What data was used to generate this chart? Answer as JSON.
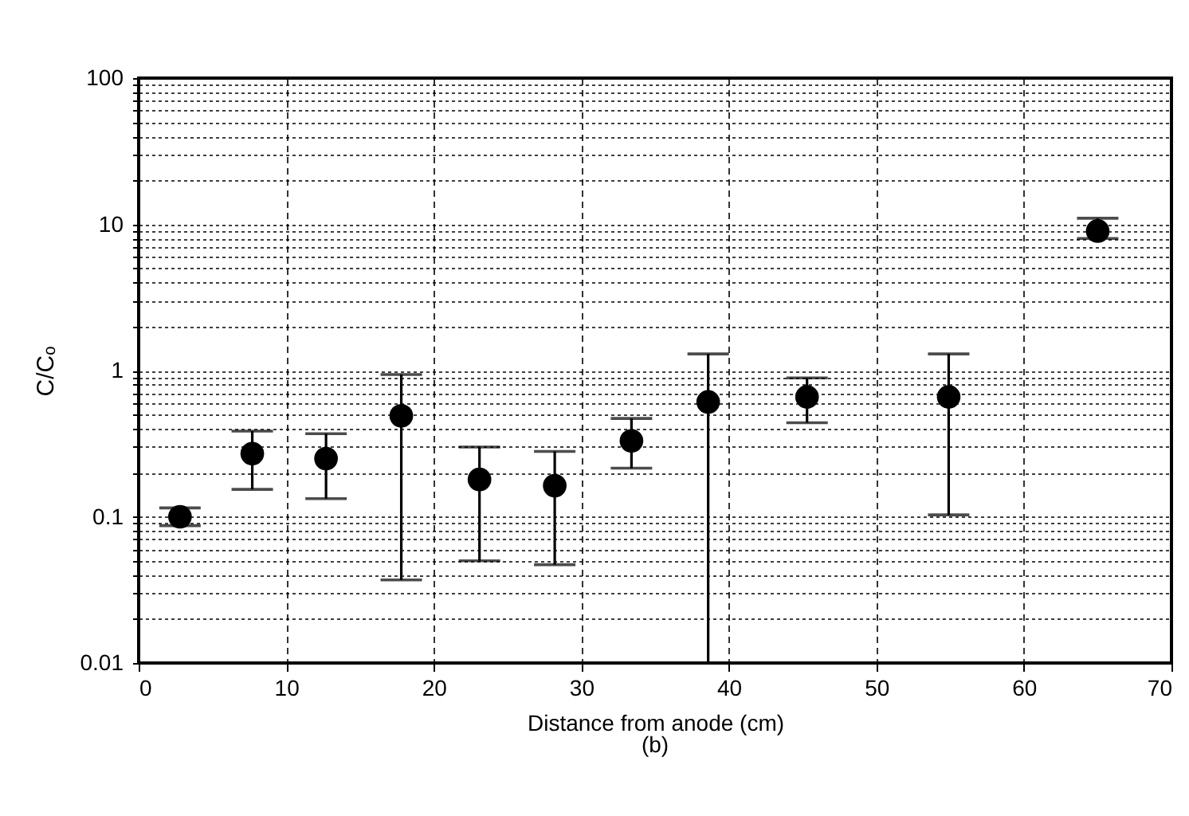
{
  "chart_data": {
    "type": "scatter",
    "xlabel": "Distance from anode (cm)",
    "ylabel": "C/Cₒ",
    "annotations": [
      "(b)"
    ],
    "x": [
      2.8,
      7.7,
      12.7,
      17.8,
      23.1,
      28.2,
      33.4,
      38.6,
      45.3,
      54.9,
      65.0
    ],
    "values": [
      0.1,
      0.27,
      0.25,
      0.49,
      0.18,
      0.163,
      0.33,
      0.61,
      0.66,
      0.66,
      9
    ],
    "errors": [
      [
        0.087,
        0.115
      ],
      [
        0.154,
        0.385
      ],
      [
        0.133,
        0.37
      ],
      [
        0.037,
        0.94
      ],
      [
        0.05,
        0.3
      ],
      [
        0.047,
        0.28
      ],
      [
        0.215,
        0.47
      ],
      [
        0.01,
        1.3
      ],
      [
        0.44,
        0.89
      ],
      [
        0.103,
        1.3
      ],
      [
        8,
        11
      ]
    ],
    "color": "#000000",
    "marker": "circle",
    "log": "y",
    "grid": true,
    "xlim": [
      0,
      70
    ],
    "xticks": [
      0,
      10,
      20,
      30,
      40,
      50,
      60,
      70
    ],
    "ylim": [
      0.01,
      100
    ],
    "yticks": [
      0.01,
      {
        "value": 0.02,
        "label": null
      },
      {
        "value": 0.03,
        "label": null
      },
      {
        "value": 0.04,
        "label": null
      },
      {
        "value": 0.05,
        "label": null
      },
      {
        "value": 0.06,
        "label": null
      },
      {
        "value": 0.07,
        "label": null
      },
      {
        "value": 0.08,
        "label": null
      },
      {
        "value": 0.09,
        "label": null
      },
      0.1,
      {
        "value": 0.2,
        "label": null
      },
      {
        "value": 0.3,
        "label": null
      },
      {
        "value": 0.4,
        "label": null
      },
      {
        "value": 0.5,
        "label": null
      },
      {
        "value": 0.6,
        "label": null
      },
      {
        "value": 0.7,
        "label": null
      },
      {
        "value": 0.8,
        "label": null
      },
      {
        "value": 0.9,
        "label": null
      },
      1,
      {
        "value": 2,
        "label": null
      },
      {
        "value": 3,
        "label": null
      },
      {
        "value": 4,
        "label": null
      },
      {
        "value": 5,
        "label": null
      },
      {
        "value": 6,
        "label": null
      },
      {
        "value": 7,
        "label": null
      },
      {
        "value": 8,
        "label": null
      },
      {
        "value": 9,
        "label": null
      },
      10,
      {
        "value": 20,
        "label": null
      },
      {
        "value": 30,
        "label": null
      },
      {
        "value": 40,
        "label": null
      },
      {
        "value": 50,
        "label": null
      },
      {
        "value": 60,
        "label": null
      },
      {
        "value": 70,
        "label": null
      },
      {
        "value": 80,
        "label": null
      },
      {
        "value": 90,
        "label": null
      },
      100
    ]
  }
}
